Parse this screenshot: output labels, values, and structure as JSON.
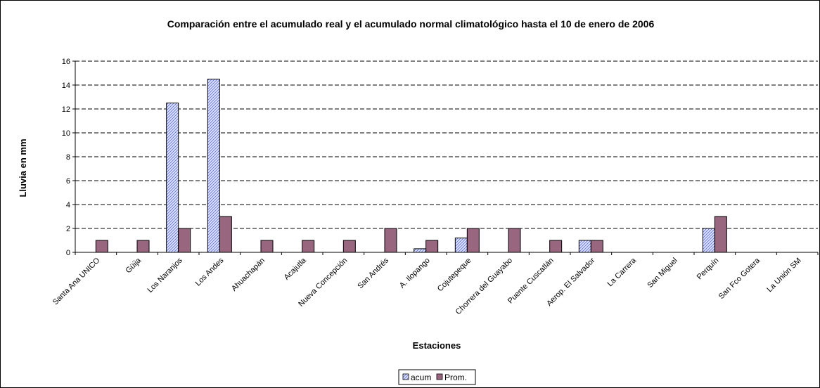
{
  "chart_data": {
    "type": "bar",
    "title": "Comparación entre el acumulado real y el acumulado normal climatológico hasta el 10 de enero de 2006",
    "xlabel": "Estaciones",
    "ylabel": "Lluvia en mm",
    "ylim": [
      0,
      16
    ],
    "yticks": [
      "0",
      "2",
      "4",
      "6",
      "8",
      "10",
      "12",
      "14",
      "16"
    ],
    "grid": true,
    "legend_position": "bottom",
    "categories": [
      "Santa Ana UNICO",
      "Güija",
      "Los Naranjos",
      "Los Andes",
      "Ahuachapán",
      "Acajutla",
      "Nueva Concepción",
      "San Andrés",
      "A. Ilopango",
      "Cojutepeque",
      "Chorrera del Guayabo",
      "Puente Cuscatlán",
      "Aerop. El Salvador",
      "La Carrera",
      "San Miguel",
      "Perquín",
      "San Fco Gotera",
      "La Unión SM"
    ],
    "series": [
      {
        "name": "acum",
        "color": "#c8d0f5",
        "pattern": "diagonal-hatch-blue",
        "values": [
          0,
          0,
          12.5,
          14.5,
          0,
          0,
          0,
          0,
          0.3,
          1.2,
          0,
          0,
          1,
          0,
          0,
          2,
          0,
          0
        ]
      },
      {
        "name": "Prom.",
        "color": "#996680",
        "values": [
          1,
          1,
          2,
          3,
          1,
          1,
          1,
          2,
          1,
          2,
          2,
          1,
          1,
          0,
          0,
          3,
          0,
          0
        ]
      }
    ]
  }
}
